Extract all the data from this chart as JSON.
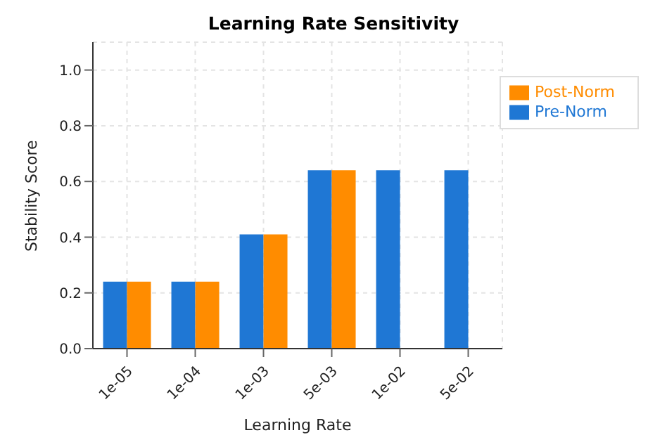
{
  "chart_data": {
    "type": "bar",
    "title": "Learning Rate Sensitivity",
    "xlabel": "Learning Rate",
    "ylabel": "Stability Score",
    "categories": [
      "1e-05",
      "1e-04",
      "1e-03",
      "5e-03",
      "1e-02",
      "5e-02"
    ],
    "series": [
      {
        "name": "Pre-Norm",
        "color": "#1f77d4",
        "values": [
          0.24,
          0.24,
          0.41,
          0.64,
          0.64,
          0.64
        ]
      },
      {
        "name": "Post-Norm",
        "color": "#ff8c00",
        "values": [
          0.24,
          0.24,
          0.41,
          0.64,
          0,
          0
        ]
      }
    ],
    "ylim": [
      0,
      1.1
    ],
    "yticks": [
      {
        "value": 0,
        "label": "0.0"
      },
      {
        "value": 0.2,
        "label": "0.2"
      },
      {
        "value": 0.4,
        "label": "0.4"
      },
      {
        "value": 0.6,
        "label": "0.6"
      },
      {
        "value": 0.8,
        "label": "0.8"
      },
      {
        "value": 1,
        "label": "1.0"
      }
    ],
    "grid": true,
    "legend": "top right"
  }
}
